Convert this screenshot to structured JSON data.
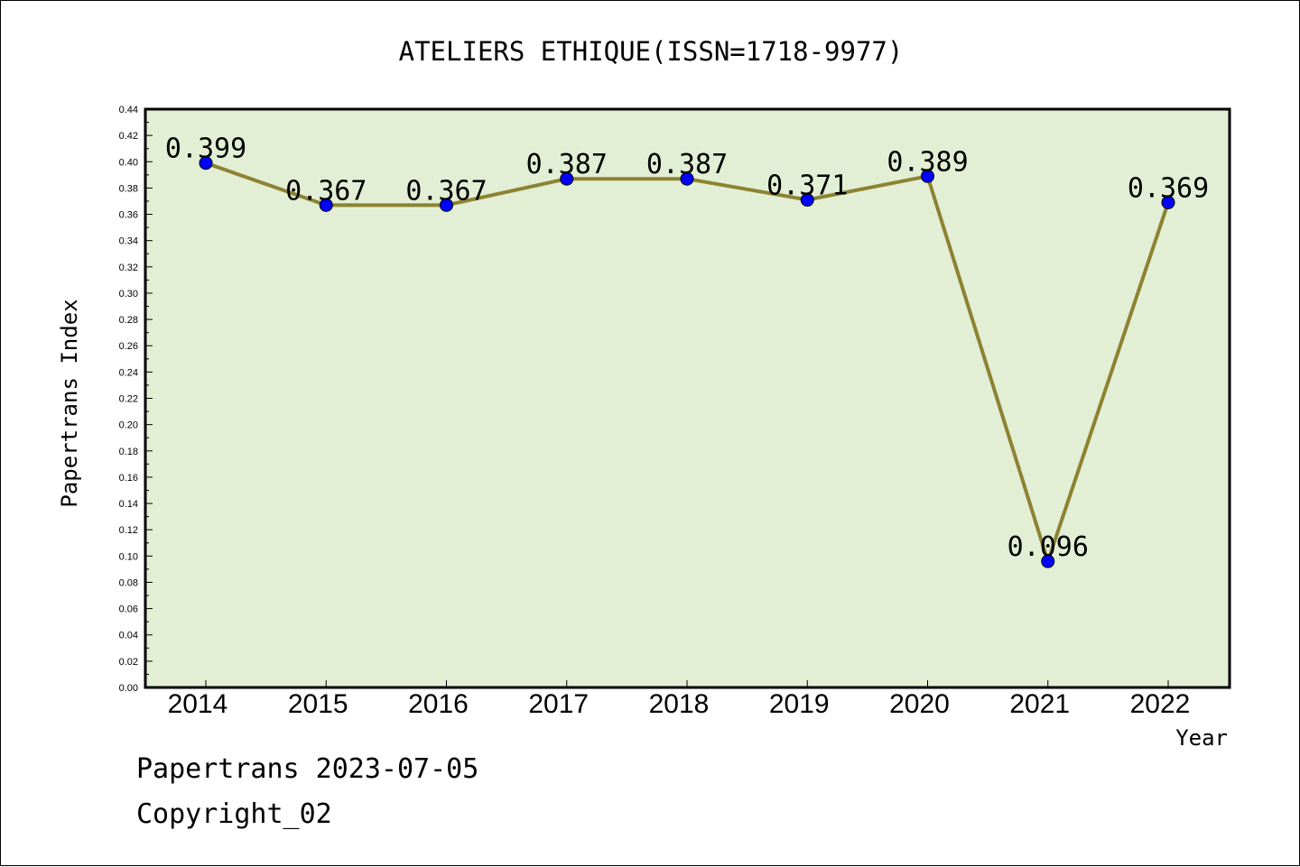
{
  "chart_data": {
    "type": "line",
    "title": "ATELIERS ETHIQUE(ISSN=1718-9977)",
    "xlabel": "Year",
    "ylabel": "Papertrans Index",
    "categories": [
      "2014",
      "2015",
      "2016",
      "2017",
      "2018",
      "2019",
      "2020",
      "2021",
      "2022"
    ],
    "series": [
      {
        "values": [
          0.399,
          0.367,
          0.367,
          0.387,
          0.387,
          0.371,
          0.389,
          0.096,
          0.369
        ],
        "labels": [
          "0.399",
          "0.367",
          "0.367",
          "0.387",
          "0.387",
          "0.371",
          "0.389",
          "0.096",
          "0.369"
        ]
      }
    ],
    "ylim": [
      0,
      0.44
    ],
    "yticks": [
      "0.00",
      "0.02",
      "0.04",
      "0.06",
      "0.08",
      "0.10",
      "0.12",
      "0.14",
      "0.16",
      "0.18",
      "0.20",
      "0.22",
      "0.24",
      "0.26",
      "0.28",
      "0.30",
      "0.32",
      "0.34",
      "0.36",
      "0.38",
      "0.40",
      "0.42",
      "0.44"
    ],
    "grid": false,
    "colors": {
      "plot_background": "#e2efd4",
      "line": "#8c8232",
      "marker": "#0000ff"
    }
  },
  "footer": {
    "line1": "Papertrans 2023-07-05",
    "line2": "Copyright_02"
  }
}
